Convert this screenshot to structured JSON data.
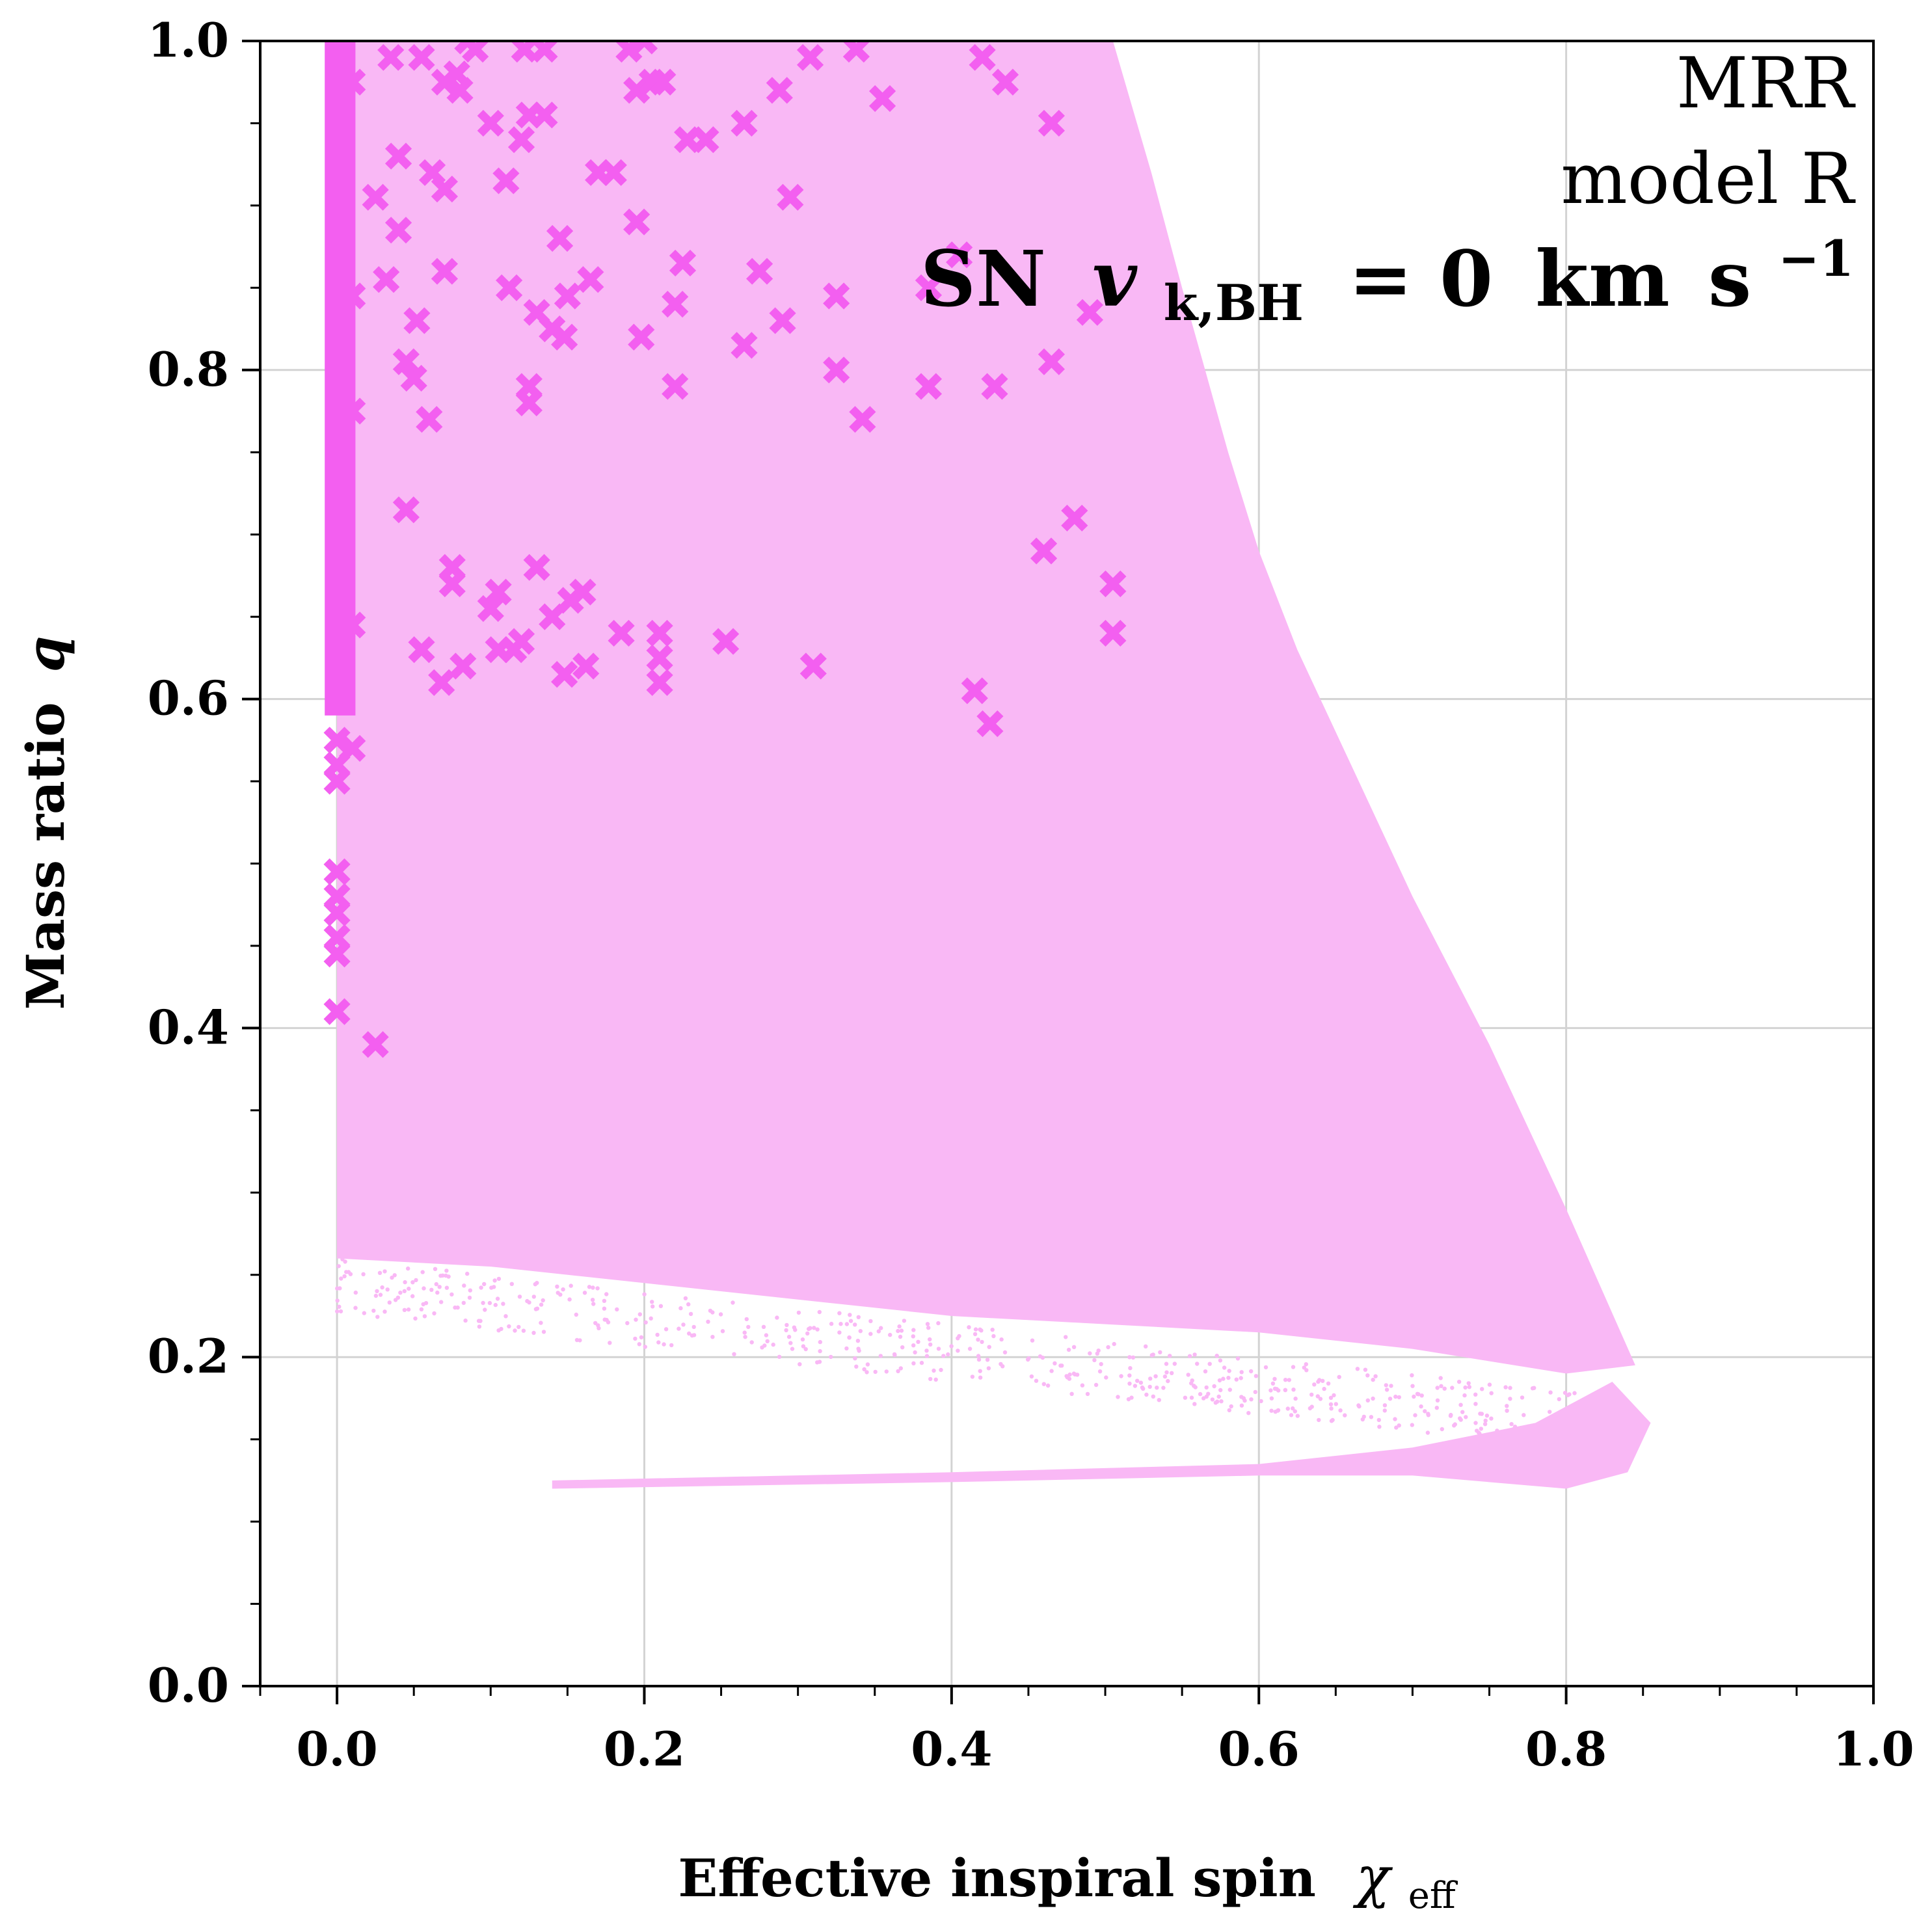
{
  "chart_data": {
    "type": "scatter",
    "xlabel": "Effective inspiral spin",
    "xlabel_symbol": "χ",
    "xlabel_subscript": "eff",
    "ylabel": "Mass ratio",
    "ylabel_symbol": "q",
    "xlim": [
      -0.05,
      1.0
    ],
    "ylim": [
      0.0,
      1.0
    ],
    "xticks": [
      "0.0",
      "0.2",
      "0.4",
      "0.6",
      "0.8",
      "1.0"
    ],
    "yticks": [
      "0.0",
      "0.2",
      "0.4",
      "0.6",
      "0.8",
      "1.0"
    ],
    "grid": true,
    "annotations": {
      "line1": "MRR",
      "line2": "model R",
      "line3_prefix": "SN",
      "line3_var": "v",
      "line3_sub": "k,BH",
      "line3_eq": "= 0",
      "line3_unit_km": "km",
      "line3_unit_s": "s",
      "line3_exp": "−1"
    },
    "colors": {
      "population": "#f9b8f5",
      "markers": "#f35ff0",
      "grid": "#d3d3d3",
      "axes": "#000000"
    },
    "population_region": {
      "main_boundary": [
        [
          -0.005,
          1.0
        ],
        [
          0.505,
          1.0
        ],
        [
          0.53,
          0.92
        ],
        [
          0.55,
          0.85
        ],
        [
          0.565,
          0.8
        ],
        [
          0.58,
          0.75
        ],
        [
          0.6,
          0.69
        ],
        [
          0.625,
          0.63
        ],
        [
          0.66,
          0.56
        ],
        [
          0.7,
          0.48
        ],
        [
          0.75,
          0.39
        ],
        [
          0.8,
          0.29
        ],
        [
          0.845,
          0.195
        ],
        [
          0.8,
          0.19
        ],
        [
          0.7,
          0.205
        ],
        [
          0.6,
          0.215
        ],
        [
          0.5,
          0.22
        ],
        [
          0.4,
          0.225
        ],
        [
          0.3,
          0.235
        ],
        [
          0.2,
          0.245
        ],
        [
          0.1,
          0.255
        ],
        [
          0.0,
          0.26
        ],
        [
          0.0,
          0.6
        ],
        [
          -0.005,
          0.6
        ]
      ],
      "lower_tail": [
        [
          0.14,
          0.125
        ],
        [
          0.4,
          0.13
        ],
        [
          0.6,
          0.135
        ],
        [
          0.7,
          0.145
        ],
        [
          0.78,
          0.16
        ],
        [
          0.83,
          0.185
        ],
        [
          0.855,
          0.16
        ],
        [
          0.84,
          0.13
        ],
        [
          0.8,
          0.12
        ],
        [
          0.7,
          0.128
        ],
        [
          0.6,
          0.128
        ],
        [
          0.4,
          0.124
        ],
        [
          0.14,
          0.12
        ]
      ],
      "dense_spin_zero_band": [
        [
          -0.008,
          1.0
        ],
        [
          0.012,
          1.0
        ],
        [
          0.012,
          0.59
        ],
        [
          -0.008,
          0.59
        ]
      ]
    },
    "series": [
      {
        "marker": "x",
        "points": [
          [
            0.0,
            0.41
          ],
          [
            0.0,
            0.445
          ],
          [
            0.0,
            0.455
          ],
          [
            0.0,
            0.47
          ],
          [
            0.0,
            0.48
          ],
          [
            0.0,
            0.495
          ],
          [
            0.0,
            0.55
          ],
          [
            0.0,
            0.56
          ],
          [
            0.0,
            0.575
          ],
          [
            0.01,
            0.57
          ],
          [
            0.01,
            0.645
          ],
          [
            0.01,
            0.775
          ],
          [
            0.01,
            0.845
          ],
          [
            0.01,
            0.975
          ],
          [
            0.025,
            0.39
          ],
          [
            0.025,
            0.905
          ],
          [
            0.032,
            0.855
          ],
          [
            0.035,
            0.99
          ],
          [
            0.04,
            0.885
          ],
          [
            0.04,
            0.93
          ],
          [
            0.045,
            0.715
          ],
          [
            0.045,
            0.805
          ],
          [
            0.05,
            0.795
          ],
          [
            0.052,
            0.83
          ],
          [
            0.055,
            0.63
          ],
          [
            0.055,
            0.99
          ],
          [
            0.06,
            0.77
          ],
          [
            0.062,
            0.92
          ],
          [
            0.068,
            0.61
          ],
          [
            0.07,
            0.86
          ],
          [
            0.07,
            0.91
          ],
          [
            0.07,
            0.975
          ],
          [
            0.075,
            0.68
          ],
          [
            0.075,
            0.67
          ],
          [
            0.078,
            0.98
          ],
          [
            0.08,
            0.97
          ],
          [
            0.082,
            0.62
          ],
          [
            0.085,
            1.0
          ],
          [
            0.09,
            0.995
          ],
          [
            0.1,
            0.95
          ],
          [
            0.1,
            0.655
          ],
          [
            0.105,
            0.665
          ],
          [
            0.105,
            0.63
          ],
          [
            0.11,
            0.915
          ],
          [
            0.112,
            0.85
          ],
          [
            0.115,
            0.63
          ],
          [
            0.12,
            0.635
          ],
          [
            0.12,
            0.94
          ],
          [
            0.122,
            0.995
          ],
          [
            0.125,
            0.78
          ],
          [
            0.125,
            0.79
          ],
          [
            0.125,
            0.955
          ],
          [
            0.13,
            0.68
          ],
          [
            0.13,
            0.835
          ],
          [
            0.135,
            0.955
          ],
          [
            0.135,
            0.995
          ],
          [
            0.14,
            0.825
          ],
          [
            0.14,
            0.65
          ],
          [
            0.145,
            0.88
          ],
          [
            0.148,
            0.615
          ],
          [
            0.148,
            0.82
          ],
          [
            0.15,
            0.845
          ],
          [
            0.152,
            0.66
          ],
          [
            0.16,
            0.665
          ],
          [
            0.162,
            0.62
          ],
          [
            0.165,
            0.855
          ],
          [
            0.17,
            0.92
          ],
          [
            0.18,
            0.92
          ],
          [
            0.185,
            0.64
          ],
          [
            0.19,
            0.995
          ],
          [
            0.195,
            0.97
          ],
          [
            0.195,
            0.89
          ],
          [
            0.198,
            0.82
          ],
          [
            0.2,
            1.0
          ],
          [
            0.205,
            0.975
          ],
          [
            0.21,
            0.64
          ],
          [
            0.21,
            0.625
          ],
          [
            0.21,
            0.61
          ],
          [
            0.212,
            0.975
          ],
          [
            0.22,
            0.79
          ],
          [
            0.22,
            0.84
          ],
          [
            0.225,
            0.865
          ],
          [
            0.228,
            0.94
          ],
          [
            0.24,
            0.94
          ],
          [
            0.253,
            0.635
          ],
          [
            0.265,
            0.95
          ],
          [
            0.265,
            0.815
          ],
          [
            0.275,
            0.86
          ],
          [
            0.288,
            0.97
          ],
          [
            0.29,
            0.83
          ],
          [
            0.295,
            0.905
          ],
          [
            0.308,
            0.99
          ],
          [
            0.31,
            0.62
          ],
          [
            0.325,
            0.845
          ],
          [
            0.325,
            0.8
          ],
          [
            0.338,
            0.995
          ],
          [
            0.342,
            0.77
          ],
          [
            0.355,
            0.965
          ],
          [
            0.385,
            0.79
          ],
          [
            0.385,
            0.85
          ],
          [
            0.405,
            0.87
          ],
          [
            0.415,
            0.605
          ],
          [
            0.42,
            0.99
          ],
          [
            0.425,
            0.585
          ],
          [
            0.428,
            0.79
          ],
          [
            0.435,
            0.975
          ],
          [
            0.46,
            0.69
          ],
          [
            0.465,
            0.805
          ],
          [
            0.465,
            0.95
          ],
          [
            0.48,
            0.71
          ],
          [
            0.49,
            0.835
          ],
          [
            0.505,
            0.67
          ],
          [
            0.505,
            0.64
          ]
        ]
      }
    ]
  }
}
